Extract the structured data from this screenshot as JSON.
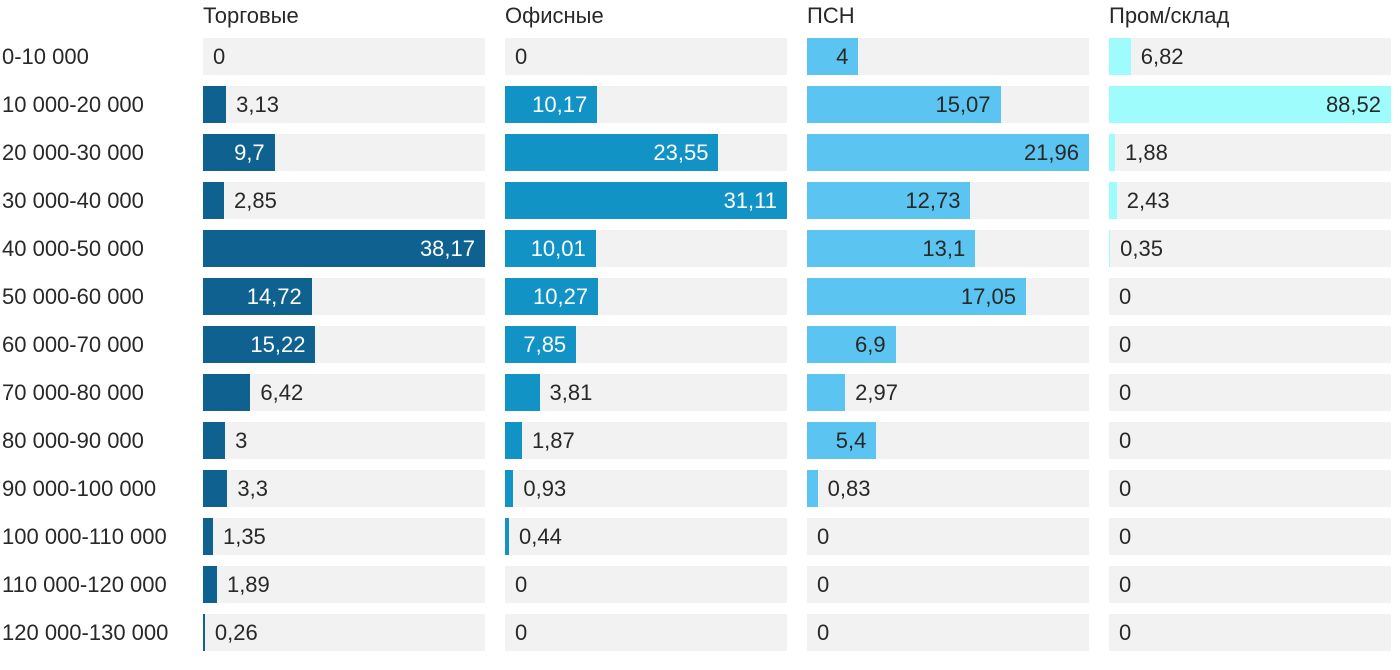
{
  "chart_data": {
    "type": "bar",
    "orientation": "horizontal",
    "title": "",
    "xlabel": "",
    "ylabel": "",
    "grid": false,
    "legend_position": "column-headers-top",
    "track_color": "#f2f2f2",
    "text_color": "#282828",
    "scaling": "each series scaled independently to its own max value",
    "categories": [
      "0-10 000",
      "10 000-20 000",
      "20 000-30 000",
      "30 000-40 000",
      "40 000-50 000",
      "50 000-60 000",
      "60 000-70 000",
      "70 000-80 000",
      "80 000-90 000",
      "90 000-100 000",
      "100 000-110 000",
      "110 000-120 000",
      "120 000-130 000"
    ],
    "series": [
      {
        "name": "Торговые",
        "color": "#0f6190",
        "inside_label_color": "#ffffff",
        "xlim": [
          0,
          38.17
        ],
        "values": [
          0,
          3.13,
          9.7,
          2.85,
          38.17,
          14.72,
          15.22,
          6.42,
          3,
          3.3,
          1.35,
          1.89,
          0.26
        ],
        "labels": [
          "0",
          "3,13",
          "9,7",
          "2,85",
          "38,17",
          "14,72",
          "15,22",
          "6,42",
          "3",
          "3,3",
          "1,35",
          "1,89",
          "0,26"
        ]
      },
      {
        "name": "Офисные",
        "color": "#1193c5",
        "inside_label_color": "#ffffff",
        "xlim": [
          0,
          31.11
        ],
        "values": [
          0,
          10.17,
          23.55,
          31.11,
          10.01,
          10.27,
          7.85,
          3.81,
          1.87,
          0.93,
          0.44,
          0,
          0
        ],
        "labels": [
          "0",
          "10,17",
          "23,55",
          "31,11",
          "10,01",
          "10,27",
          "7,85",
          "3,81",
          "1,87",
          "0,93",
          "0,44",
          "0",
          "0"
        ]
      },
      {
        "name": "ПСН",
        "color": "#5bc4f0",
        "inside_label_color": "#282828",
        "xlim": [
          0,
          21.96
        ],
        "values": [
          4,
          15.07,
          21.96,
          12.73,
          13.1,
          17.05,
          6.9,
          2.97,
          5.4,
          0.83,
          0,
          0,
          0
        ],
        "labels": [
          "4",
          "15,07",
          "21,96",
          "12,73",
          "13,1",
          "17,05",
          "6,9",
          "2,97",
          "5,4",
          "0,83",
          "0",
          "0",
          "0"
        ]
      },
      {
        "name": "Пром/склад",
        "color": "#9efcfc",
        "inside_label_color": "#282828",
        "xlim": [
          0,
          88.52
        ],
        "values": [
          6.82,
          88.52,
          1.88,
          2.43,
          0.35,
          0,
          0,
          0,
          0,
          0,
          0,
          0,
          0
        ],
        "labels": [
          "6,82",
          "88,52",
          "1,88",
          "2,43",
          "0,35",
          "0",
          "0",
          "0",
          "0",
          "0",
          "0",
          "0",
          "0"
        ]
      }
    ]
  }
}
